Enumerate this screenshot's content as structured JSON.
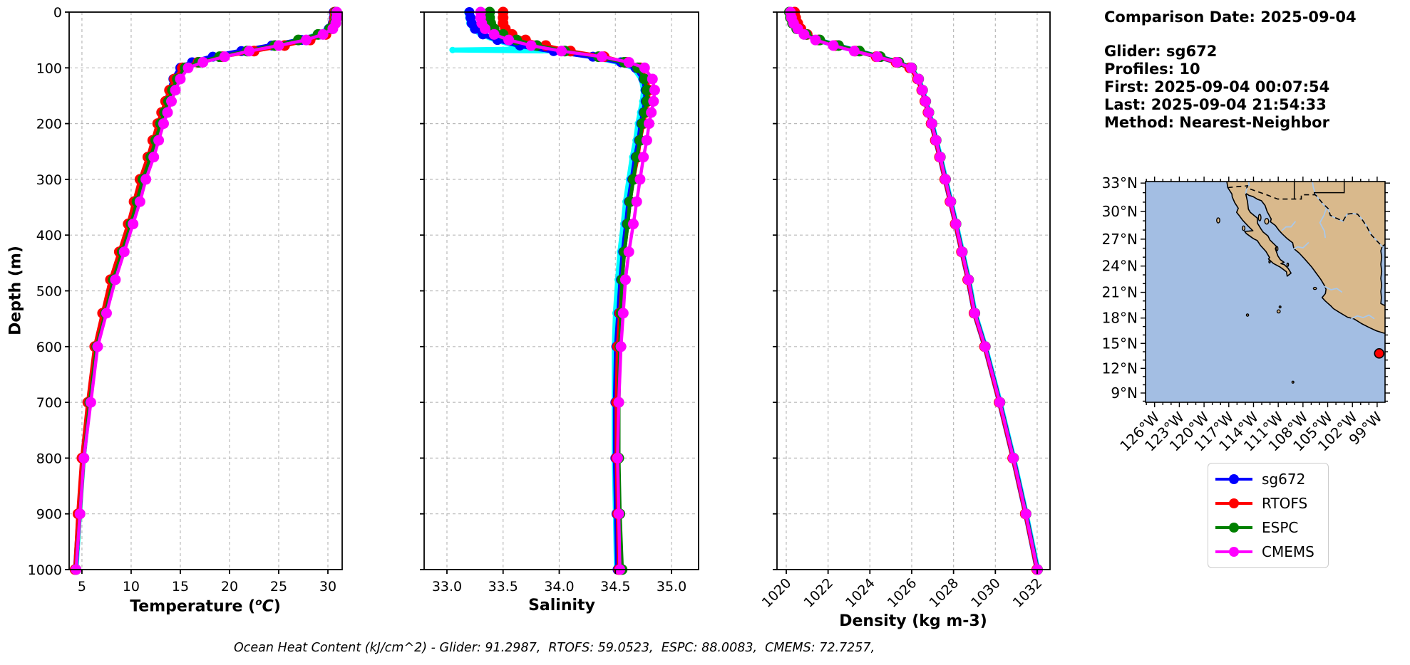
{
  "meta": {
    "title_line": "Comparison Date: 2025-09-04",
    "lines": [
      "Glider: sg672",
      "Profiles: 10",
      "First: 2025-09-04 00:07:54",
      "Last: 2025-09-04 21:54:33",
      "Method: Nearest-Neighbor"
    ]
  },
  "caption": "Ocean Heat Content (kJ/cm^2) - Glider: 91.2987,  RTOFS: 59.0523,  ESPC: 88.0083,  CMEMS: 72.7257,",
  "axis": {
    "depth_label": "Depth (m)",
    "temp_prefix": "Temperature (",
    "temp_sup": "o",
    "temp_unit": "C",
    "temp_suffix": ")",
    "sal_label": "Salinity",
    "dens_label": "Density (kg m-3)"
  },
  "legend": {
    "items": [
      {
        "label": "sg672",
        "color": "#0000ff"
      },
      {
        "label": "RTOFS",
        "color": "#ff0000"
      },
      {
        "label": "ESPC",
        "color": "#008000"
      },
      {
        "label": "CMEMS",
        "color": "#ff00ff"
      }
    ]
  },
  "map": {
    "ocean_color": "#a3bee3",
    "land_color": "#d9b98c",
    "river_color": "#a9c8ea",
    "coast_color": "#000000",
    "lat_ticks": [
      {
        "lat": 33,
        "label": "33°N"
      },
      {
        "lat": 30,
        "label": "30°N"
      },
      {
        "lat": 27,
        "label": "27°N"
      },
      {
        "lat": 24,
        "label": "24°N"
      },
      {
        "lat": 21,
        "label": "21°N"
      },
      {
        "lat": 18,
        "label": "18°N"
      },
      {
        "lat": 15,
        "label": "15°N"
      },
      {
        "lat": 12,
        "label": "12°N"
      },
      {
        "lat": 9,
        "label": "9°N"
      }
    ],
    "lon_ticks": [
      {
        "lon": 126,
        "label": "126°W"
      },
      {
        "lon": 123,
        "label": "123°W"
      },
      {
        "lon": 120,
        "label": "120°W"
      },
      {
        "lon": 117,
        "label": "117°W"
      },
      {
        "lon": 114,
        "label": "114°W"
      },
      {
        "lon": 111,
        "label": "111°W"
      },
      {
        "lon": 108,
        "label": "108°W"
      },
      {
        "lon": 105,
        "label": "105°W"
      },
      {
        "lon": 102,
        "label": "102°W"
      },
      {
        "lon": 99,
        "label": "99°W"
      }
    ],
    "glider_marker": {
      "lon_w": 98.75,
      "lat_n": 13.8,
      "color": "#ff0000"
    }
  },
  "chart_data": {
    "type": "line",
    "orientation": "depth-profile",
    "ylabel": "Depth (m)",
    "ylim": [
      0,
      1000
    ],
    "yticks": [
      0,
      100,
      200,
      300,
      400,
      500,
      600,
      700,
      800,
      900,
      1000
    ],
    "depths": [
      0,
      10,
      20,
      30,
      40,
      50,
      60,
      70,
      80,
      90,
      100,
      120,
      140,
      160,
      180,
      200,
      230,
      260,
      300,
      340,
      380,
      430,
      480,
      540,
      600,
      700,
      800,
      900,
      1000
    ],
    "series_order": [
      "raw",
      "sg672",
      "RTOFS",
      "ESPC",
      "CMEMS"
    ],
    "series_styles": {
      "raw": {
        "color": "#00ffff",
        "lw": 7,
        "r": 4.5
      },
      "sg672": {
        "color": "#0000ff",
        "lw": 7,
        "r": 7
      },
      "RTOFS": {
        "color": "#ff0000",
        "lw": 5,
        "r": 7.5
      },
      "ESPC": {
        "color": "#008000",
        "lw": 5,
        "r": 7.5
      },
      "CMEMS": {
        "color": "#ff00ff",
        "lw": 4.5,
        "r": 7.5
      }
    },
    "panels": [
      {
        "key": "temperature",
        "title": "Temperature (°C)",
        "xlim": [
          3.7,
          31.45
        ],
        "xticks": [
          5,
          10,
          15,
          20,
          25,
          30
        ],
        "xtick_labels": [
          "5",
          "10",
          "15",
          "20",
          "25",
          "30"
        ],
        "rotate": false,
        "series": {
          "sg672": [
            30.6,
            30.6,
            30.5,
            30.1,
            29.2,
            27.3,
            24.3,
            21.2,
            18.3,
            16.2,
            15.0,
            14.3,
            13.9,
            13.6,
            13.2,
            12.8,
            12.3,
            11.8,
            11.0,
            10.4,
            9.8,
            8.9,
            8.0,
            7.2,
            6.4,
            5.7,
            5.1,
            4.7,
            4.35
          ],
          "RTOFS": [
            30.7,
            30.7,
            30.6,
            30.4,
            29.8,
            28.2,
            25.6,
            22.5,
            19.3,
            16.8,
            15.2,
            14.4,
            13.9,
            13.5,
            13.1,
            12.7,
            12.2,
            11.7,
            10.9,
            10.3,
            9.7,
            8.8,
            7.9,
            7.1,
            6.3,
            5.6,
            5.0,
            4.6,
            4.3
          ],
          "ESPC": [
            30.8,
            30.8,
            30.7,
            30.2,
            29.0,
            27.0,
            24.6,
            21.8,
            19.0,
            16.9,
            15.5,
            14.7,
            14.2,
            13.8,
            13.4,
            13.0,
            12.5,
            12.0,
            11.2,
            10.6,
            10.0,
            9.1,
            8.2,
            7.4,
            6.5,
            5.8,
            5.2,
            4.8,
            4.4
          ],
          "CMEMS": [
            30.9,
            30.9,
            30.8,
            30.5,
            29.5,
            27.8,
            25.0,
            22.0,
            19.5,
            17.3,
            15.8,
            15.0,
            14.5,
            14.1,
            13.7,
            13.3,
            12.8,
            12.3,
            11.5,
            10.9,
            10.2,
            9.3,
            8.4,
            7.5,
            6.6,
            5.9,
            5.2,
            4.8,
            4.4
          ],
          "raw": [
            30.55,
            30.6,
            30.45,
            30.0,
            29.0,
            27.1,
            24.6,
            21.6,
            18.7,
            16.5,
            15.2,
            14.35,
            13.95,
            13.65,
            13.25,
            12.85,
            12.35,
            11.85,
            11.05,
            10.45,
            9.85,
            8.95,
            8.05,
            7.25,
            6.45,
            5.75,
            5.15,
            4.75,
            4.4
          ]
        }
      },
      {
        "key": "salinity",
        "title": "Salinity",
        "xlim": [
          32.797,
          35.241
        ],
        "xticks": [
          33.0,
          33.5,
          34.0,
          34.5,
          35.0
        ],
        "xtick_labels": [
          "33.0",
          "33.5",
          "34.0",
          "34.5",
          "35.0"
        ],
        "rotate": false,
        "series": {
          "sg672": [
            33.2,
            33.21,
            33.22,
            33.25,
            33.32,
            33.45,
            33.65,
            33.95,
            34.3,
            34.55,
            34.68,
            34.75,
            34.77,
            34.77,
            34.75,
            34.73,
            34.71,
            34.68,
            34.65,
            34.62,
            34.6,
            34.57,
            34.55,
            34.53,
            34.51,
            34.5,
            34.5,
            34.51,
            34.52
          ],
          "RTOFS": [
            33.5,
            33.5,
            33.5,
            33.52,
            33.58,
            33.7,
            33.88,
            34.1,
            34.4,
            34.6,
            34.72,
            34.78,
            34.8,
            34.79,
            34.77,
            34.75,
            34.72,
            34.7,
            34.66,
            34.63,
            34.61,
            34.58,
            34.56,
            34.54,
            34.52,
            34.51,
            34.51,
            34.52,
            34.53
          ],
          "ESPC": [
            33.38,
            33.38,
            33.39,
            33.42,
            33.5,
            33.62,
            33.8,
            34.05,
            34.35,
            34.58,
            34.7,
            34.76,
            34.78,
            34.78,
            34.76,
            34.74,
            34.72,
            34.69,
            34.66,
            34.63,
            34.61,
            34.58,
            34.56,
            34.55,
            34.54,
            34.53,
            34.53,
            34.54,
            34.56
          ],
          "CMEMS": [
            33.3,
            33.3,
            33.31,
            33.34,
            33.42,
            33.55,
            33.75,
            34.02,
            34.38,
            34.62,
            34.76,
            34.83,
            34.85,
            34.84,
            34.82,
            34.8,
            34.78,
            34.75,
            34.72,
            34.69,
            34.66,
            34.62,
            34.59,
            34.57,
            34.55,
            34.53,
            34.52,
            34.53,
            34.54
          ],
          "raw": [
            33.18,
            33.19,
            33.2,
            33.23,
            33.3,
            33.43,
            33.6,
            33.72,
            33.05,
            34.0,
            34.1,
            34.28,
            34.52,
            34.66,
            34.73,
            34.75,
            34.74,
            34.72,
            34.7,
            34.68,
            34.65,
            34.62,
            34.59,
            34.57,
            34.54,
            34.52,
            34.5,
            34.49,
            34.49,
            34.49,
            34.5,
            34.51
          ]
        },
        "series_depths": {
          "raw": [
            0,
            10,
            20,
            30,
            40,
            50,
            60,
            66,
            68,
            70,
            74,
            80,
            90,
            100,
            120,
            140,
            160,
            180,
            200,
            230,
            260,
            300,
            340,
            380,
            430,
            480,
            540,
            600,
            700,
            800,
            900,
            1000
          ]
        }
      },
      {
        "key": "density",
        "title": "Density (kg m-3)",
        "xlim": [
          1019.557,
          1032.614
        ],
        "xticks": [
          1020,
          1022,
          1024,
          1026,
          1028,
          1030,
          1032
        ],
        "xtick_labels": [
          "1020",
          "1022",
          "1024",
          "1026",
          "1028",
          "1030",
          "1032"
        ],
        "rotate": true,
        "series": {
          "sg672": [
            1020.25,
            1020.3,
            1020.4,
            1020.55,
            1020.9,
            1021.5,
            1022.4,
            1023.4,
            1024.4,
            1025.3,
            1025.95,
            1026.3,
            1026.5,
            1026.65,
            1026.8,
            1026.95,
            1027.15,
            1027.35,
            1027.6,
            1027.85,
            1028.1,
            1028.4,
            1028.7,
            1029.0,
            1029.5,
            1030.2,
            1030.85,
            1031.45,
            1032.0
          ],
          "RTOFS": [
            1020.4,
            1020.45,
            1020.55,
            1020.7,
            1021.0,
            1021.55,
            1022.35,
            1023.3,
            1024.3,
            1025.25,
            1025.9,
            1026.28,
            1026.48,
            1026.63,
            1026.78,
            1026.93,
            1027.13,
            1027.33,
            1027.58,
            1027.83,
            1028.08,
            1028.38,
            1028.68,
            1028.98,
            1029.48,
            1030.18,
            1030.83,
            1031.43,
            1031.98
          ],
          "ESPC": [
            1020.15,
            1020.2,
            1020.3,
            1020.5,
            1020.95,
            1021.6,
            1022.5,
            1023.5,
            1024.5,
            1025.38,
            1026.0,
            1026.33,
            1026.52,
            1026.67,
            1026.82,
            1026.97,
            1027.17,
            1027.37,
            1027.62,
            1027.87,
            1028.12,
            1028.42,
            1028.72,
            1029.02,
            1029.52,
            1030.22,
            1030.87,
            1031.47,
            1032.02
          ],
          "CMEMS": [
            1020.2,
            1020.25,
            1020.35,
            1020.55,
            1020.85,
            1021.4,
            1022.25,
            1023.25,
            1024.35,
            1025.3,
            1025.98,
            1026.32,
            1026.51,
            1026.66,
            1026.81,
            1026.96,
            1027.16,
            1027.36,
            1027.61,
            1027.86,
            1028.11,
            1028.41,
            1028.71,
            1029.01,
            1029.51,
            1030.21,
            1030.86,
            1031.46,
            1032.01
          ],
          "raw": [
            1020.28,
            1020.33,
            1020.43,
            1020.58,
            1020.93,
            1021.53,
            1022.43,
            1023.43,
            1024.43,
            1025.33,
            1025.98,
            1026.33,
            1026.53,
            1026.68,
            1026.83,
            1026.98,
            1027.18,
            1027.38,
            1027.63,
            1027.88,
            1028.13,
            1028.43,
            1028.73,
            1029.03,
            1029.53,
            1030.23,
            1030.88,
            1031.48,
            1032.03
          ]
        }
      }
    ]
  }
}
